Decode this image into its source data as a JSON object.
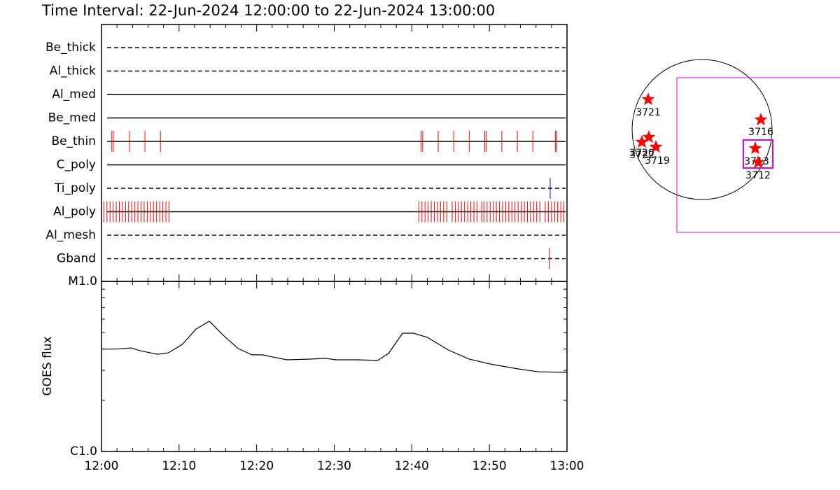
{
  "chart_data": [
    {
      "type": "event",
      "title": "Time Interval: 22-Jun-2024 12:00:00 to 22-Jun-2024 13:00:00",
      "series": [
        {
          "name": "Be_thick",
          "line": "dashed",
          "color": "#ff0000",
          "x": []
        },
        {
          "name": "Al_thick",
          "line": "dashed",
          "color": "#ff0000",
          "x": []
        },
        {
          "name": "Al_med",
          "line": "solid",
          "color": "#ff0000",
          "x": []
        },
        {
          "name": "Be_med",
          "line": "solid",
          "color": "#ff0000",
          "x": []
        },
        {
          "name": "Be_thin",
          "line": "solid",
          "color": "#ff0000",
          "x": [
            "12:01:20",
            "12:01:32",
            "12:03:36",
            "12:05:36",
            "12:07:36",
            "12:41:12",
            "12:41:24",
            "12:43:24",
            "12:45:24",
            "12:47:24",
            "12:49:24",
            "12:49:36",
            "12:51:36",
            "12:53:36",
            "12:55:36",
            "12:58:30",
            "12:58:42"
          ]
        },
        {
          "name": "C_poly",
          "line": "solid",
          "color": "#ff0000",
          "x": []
        },
        {
          "name": "Ti_poly",
          "line": "dashed",
          "color": "#0000ff",
          "x": [
            "12:57:50"
          ]
        },
        {
          "name": "Al_poly",
          "line": "solid",
          "color": "#ff0000",
          "x": [
            "12:00:18",
            "12:00:42",
            "12:01:06",
            "12:01:30",
            "12:01:54",
            "12:02:18",
            "12:02:42",
            "12:03:06",
            "12:03:30",
            "12:03:54",
            "12:04:18",
            "12:04:42",
            "12:05:06",
            "12:05:30",
            "12:05:54",
            "12:06:18",
            "12:06:42",
            "12:07:06",
            "12:07:30",
            "12:07:54",
            "12:08:18",
            "12:08:42",
            "12:40:54",
            "12:41:18",
            "12:41:42",
            "12:42:06",
            "12:42:30",
            "12:42:54",
            "12:43:18",
            "12:43:42",
            "12:44:06",
            "12:44:30",
            "12:45:12",
            "12:45:36",
            "12:46:00",
            "12:46:24",
            "12:46:48",
            "12:47:12",
            "12:47:36",
            "12:48:00",
            "12:48:24",
            "12:49:00",
            "12:49:18",
            "12:49:42",
            "12:50:06",
            "12:50:30",
            "12:50:54",
            "12:51:18",
            "12:51:42",
            "12:52:06",
            "12:52:30",
            "12:52:54",
            "12:53:18",
            "12:53:42",
            "12:54:06",
            "12:54:30",
            "12:54:54",
            "12:55:18",
            "12:55:42",
            "12:56:06",
            "12:56:30",
            "12:57:12",
            "12:57:36",
            "12:58:00",
            "12:58:24",
            "12:58:48",
            "12:59:12",
            "12:59:36"
          ]
        },
        {
          "name": "Al_mesh",
          "line": "dashed",
          "color": "#ff0000",
          "x": []
        },
        {
          "name": "Gband",
          "line": "dashed",
          "color": "#ff0000",
          "x": [
            "12:57:42"
          ]
        }
      ]
    },
    {
      "type": "line",
      "ylabel": "GOES flux",
      "log": true,
      "color": "#000000",
      "xlim": [
        "12:00",
        "13:00"
      ],
      "xticks": [
        "12:00",
        "12:10",
        "12:20",
        "12:30",
        "12:40",
        "12:50",
        "13:00"
      ],
      "ylim": [
        1e-06,
        1e-05
      ],
      "yticks": [
        {
          "value": 1e-06,
          "label": "C1.0"
        },
        {
          "value": 1e-05,
          "label": "M1.0"
        }
      ],
      "x": [
        "12:00:00",
        "12:01:48",
        "12:03:48",
        "12:05:00",
        "12:07:12",
        "12:08:36",
        "12:10:24",
        "12:12:12",
        "12:13:54",
        "12:15:48",
        "12:17:36",
        "12:19:24",
        "12:20:48",
        "12:22:06",
        "12:23:54",
        "12:26:36",
        "12:28:54",
        "12:30:12",
        "12:32:54",
        "12:35:36",
        "12:37:00",
        "12:38:48",
        "12:40:12",
        "12:42:00",
        "12:44:42",
        "12:47:24",
        "12:50:06",
        "12:53:42",
        "12:56:24",
        "13:00:00"
      ],
      "values": [
        4e-06,
        4e-06,
        4.06e-06,
        3.91e-06,
        3.73e-06,
        3.8e-06,
        4.26e-06,
        5.25e-06,
        5.83e-06,
        4.77e-06,
        4.03e-06,
        3.7e-06,
        3.7e-06,
        3.59e-06,
        3.46e-06,
        3.49e-06,
        3.53e-06,
        3.46e-06,
        3.46e-06,
        3.43e-06,
        3.77e-06,
        4.96e-06,
        4.96e-06,
        4.69e-06,
        3.95e-06,
        3.49e-06,
        3.27e-06,
        3.06e-06,
        2.94e-06,
        2.92e-06
      ]
    }
  ],
  "map": {
    "regions": [
      "3721",
      "3716",
      "3720",
      "3722",
      "3719",
      "3713",
      "3712"
    ]
  }
}
